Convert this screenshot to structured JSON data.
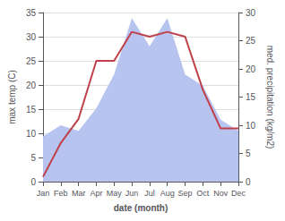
{
  "chart_data": {
    "type": "line",
    "categories": [
      "Jan",
      "Feb",
      "Mar",
      "Apr",
      "May",
      "Jun",
      "Jul",
      "Aug",
      "Sep",
      "Oct",
      "Nov",
      "Dec"
    ],
    "xlabel": "date (month)",
    "ylabel": "max temp (C)",
    "y2label": "med. precipitation (kg/m2)",
    "ylim": [
      0,
      35
    ],
    "yticks": [
      0,
      5,
      10,
      15,
      20,
      25,
      30,
      35
    ],
    "y2lim": [
      0,
      30
    ],
    "y2ticks": [
      0,
      5,
      10,
      15,
      20,
      25,
      30
    ],
    "grid": true,
    "series": [
      {
        "type": "area",
        "color": "#b8c4f0",
        "axis": "y2",
        "values": [
          8,
          10,
          9,
          13,
          19,
          29,
          24,
          29,
          19,
          17,
          11,
          9
        ]
      },
      {
        "type": "line",
        "color": "#c0404a",
        "values": [
          1,
          8,
          13,
          25,
          25,
          31,
          30,
          31,
          30,
          19,
          11,
          11
        ]
      }
    ]
  }
}
